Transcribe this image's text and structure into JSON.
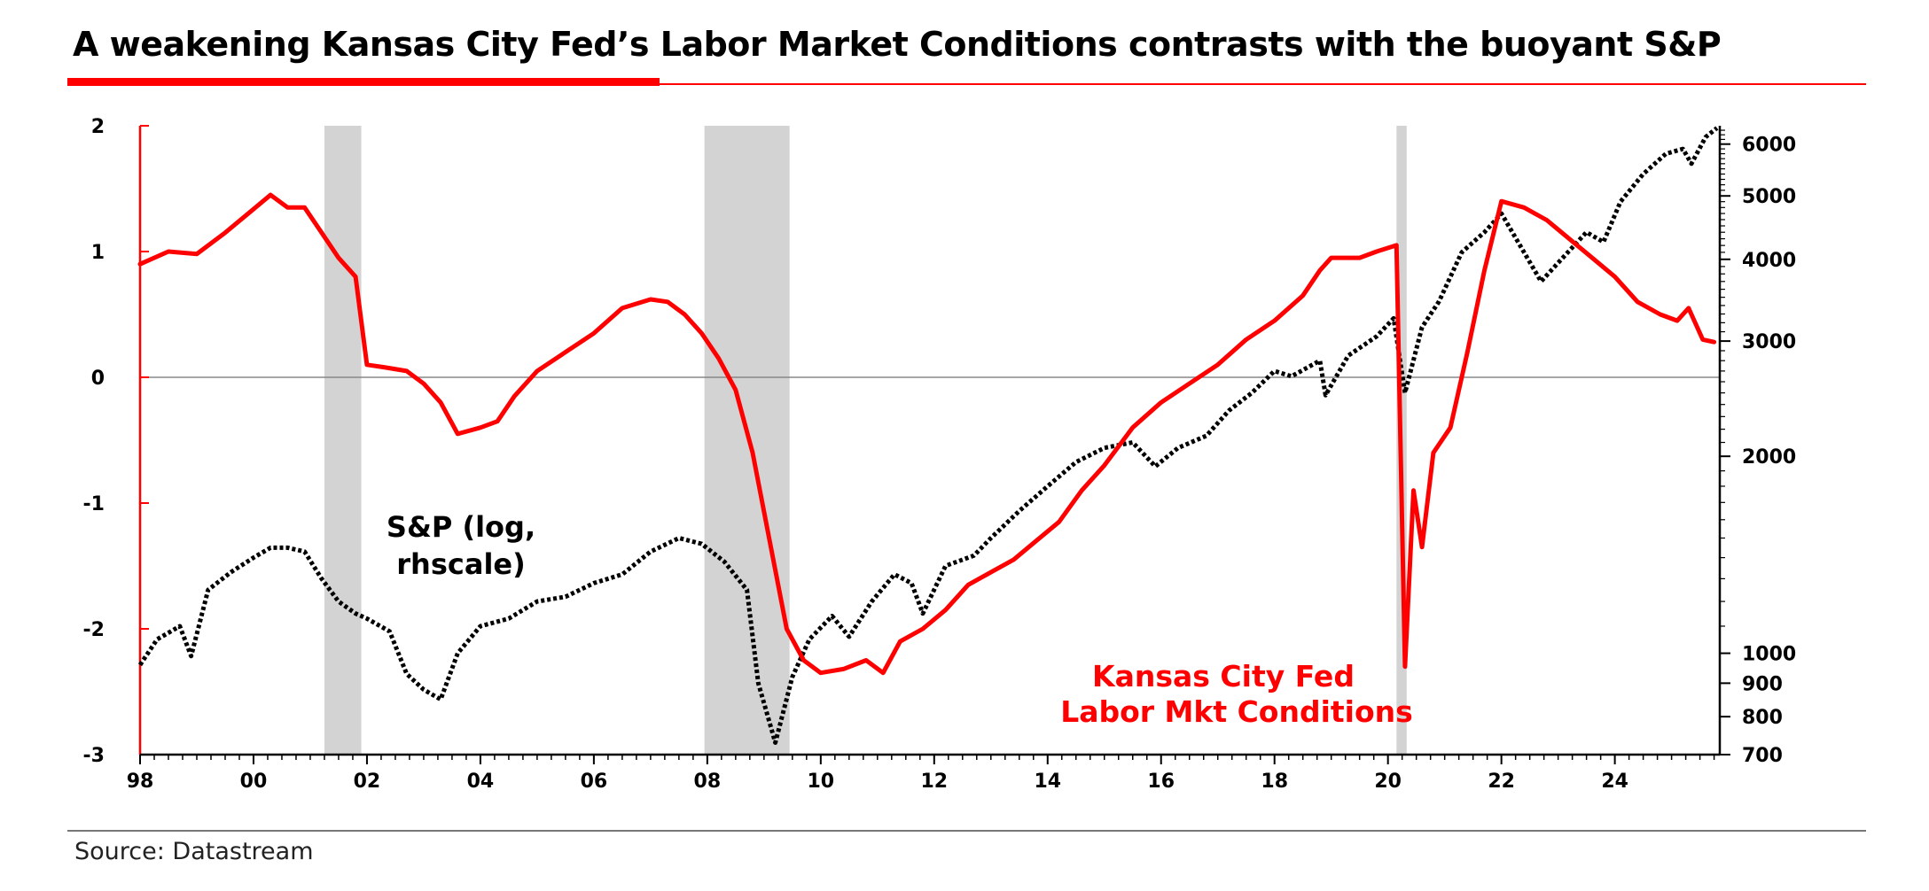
{
  "page": {
    "title": "A weakening Kansas City Fed’s Labor Market Conditions contrasts with the buoyant S&P",
    "source": "Source: Datastream",
    "accent_color": "#ff0000"
  },
  "chart_data": {
    "type": "line",
    "title": "A weakening Kansas City Fed’s Labor Market Conditions contrasts with the buoyant S&P",
    "x_ticks": [
      "98",
      "00",
      "02",
      "04",
      "06",
      "08",
      "10",
      "12",
      "14",
      "16",
      "18",
      "20",
      "22",
      "24"
    ],
    "x_tick_years": [
      1998,
      2000,
      2002,
      2004,
      2006,
      2008,
      2010,
      2012,
      2014,
      2016,
      2018,
      2020,
      2022,
      2024
    ],
    "xlim": [
      1998,
      2025.85
    ],
    "y_left": {
      "ticks": [
        "2",
        "1",
        "0",
        "-1",
        "-2",
        "-3"
      ],
      "values": [
        2,
        1,
        0,
        -1,
        -2,
        -3
      ],
      "ylim": [
        -3,
        2
      ]
    },
    "y_right": {
      "scale": "log",
      "ticks": [
        "6000",
        "5000",
        "4000",
        "3000",
        "2000",
        "1000",
        "900",
        "800",
        "700"
      ],
      "values": [
        6000,
        5000,
        4000,
        3000,
        2000,
        1000,
        900,
        800,
        700
      ],
      "ylim": [
        700,
        6400
      ]
    },
    "recessions": [
      {
        "start": 2001.25,
        "end": 2001.9
      },
      {
        "start": 2007.95,
        "end": 2009.45
      },
      {
        "start": 2020.15,
        "end": 2020.33
      }
    ],
    "annotations": {
      "sp_label_line1": "S&P (log,",
      "sp_label_line2": "rhscale)",
      "kc_label_line1": "Kansas City Fed",
      "kc_label_line2": "Labor Mkt Conditions"
    },
    "series": [
      {
        "name": "Kansas City Fed Labor Mkt Conditions",
        "axis": "left",
        "color": "#ff0000",
        "points": [
          [
            1998.0,
            0.9
          ],
          [
            1998.5,
            1.0
          ],
          [
            1999.0,
            0.98
          ],
          [
            1999.5,
            1.15
          ],
          [
            1999.9,
            1.3
          ],
          [
            2000.3,
            1.45
          ],
          [
            2000.6,
            1.35
          ],
          [
            2000.9,
            1.35
          ],
          [
            2001.2,
            1.15
          ],
          [
            2001.5,
            0.95
          ],
          [
            2001.8,
            0.8
          ],
          [
            2002.0,
            0.1
          ],
          [
            2002.3,
            0.08
          ],
          [
            2002.7,
            0.05
          ],
          [
            2003.0,
            -0.05
          ],
          [
            2003.3,
            -0.2
          ],
          [
            2003.6,
            -0.45
          ],
          [
            2004.0,
            -0.4
          ],
          [
            2004.3,
            -0.35
          ],
          [
            2004.6,
            -0.15
          ],
          [
            2005.0,
            0.05
          ],
          [
            2005.5,
            0.2
          ],
          [
            2006.0,
            0.35
          ],
          [
            2006.5,
            0.55
          ],
          [
            2007.0,
            0.62
          ],
          [
            2007.3,
            0.6
          ],
          [
            2007.6,
            0.5
          ],
          [
            2007.9,
            0.35
          ],
          [
            2008.2,
            0.15
          ],
          [
            2008.5,
            -0.1
          ],
          [
            2008.8,
            -0.6
          ],
          [
            2009.1,
            -1.3
          ],
          [
            2009.4,
            -2.0
          ],
          [
            2009.7,
            -2.25
          ],
          [
            2010.0,
            -2.35
          ],
          [
            2010.4,
            -2.32
          ],
          [
            2010.8,
            -2.25
          ],
          [
            2011.1,
            -2.35
          ],
          [
            2011.4,
            -2.1
          ],
          [
            2011.8,
            -2.0
          ],
          [
            2012.2,
            -1.85
          ],
          [
            2012.6,
            -1.65
          ],
          [
            2013.0,
            -1.55
          ],
          [
            2013.4,
            -1.45
          ],
          [
            2013.8,
            -1.3
          ],
          [
            2014.2,
            -1.15
          ],
          [
            2014.6,
            -0.9
          ],
          [
            2015.0,
            -0.7
          ],
          [
            2015.5,
            -0.4
          ],
          [
            2016.0,
            -0.2
          ],
          [
            2016.5,
            -0.05
          ],
          [
            2017.0,
            0.1
          ],
          [
            2017.5,
            0.3
          ],
          [
            2018.0,
            0.45
          ],
          [
            2018.5,
            0.65
          ],
          [
            2018.8,
            0.85
          ],
          [
            2019.0,
            0.95
          ],
          [
            2019.5,
            0.95
          ],
          [
            2019.8,
            1.0
          ],
          [
            2020.15,
            1.05
          ],
          [
            2020.3,
            -2.3
          ],
          [
            2020.45,
            -0.9
          ],
          [
            2020.6,
            -1.35
          ],
          [
            2020.8,
            -0.6
          ],
          [
            2021.1,
            -0.4
          ],
          [
            2021.4,
            0.2
          ],
          [
            2021.7,
            0.85
          ],
          [
            2022.0,
            1.4
          ],
          [
            2022.4,
            1.35
          ],
          [
            2022.8,
            1.25
          ],
          [
            2023.2,
            1.1
          ],
          [
            2023.6,
            0.95
          ],
          [
            2024.0,
            0.8
          ],
          [
            2024.4,
            0.6
          ],
          [
            2024.8,
            0.5
          ],
          [
            2025.1,
            0.45
          ],
          [
            2025.3,
            0.55
          ],
          [
            2025.55,
            0.3
          ],
          [
            2025.75,
            0.28
          ]
        ]
      },
      {
        "name": "S&P (log, rhscale)",
        "axis": "right",
        "color": "#000000",
        "style": "dotted",
        "points": [
          [
            1998.0,
            960
          ],
          [
            1998.3,
            1050
          ],
          [
            1998.7,
            1100
          ],
          [
            1998.9,
            990
          ],
          [
            1999.2,
            1250
          ],
          [
            1999.6,
            1330
          ],
          [
            2000.0,
            1400
          ],
          [
            2000.3,
            1450
          ],
          [
            2000.6,
            1450
          ],
          [
            2000.9,
            1430
          ],
          [
            2001.2,
            1300
          ],
          [
            2001.5,
            1200
          ],
          [
            2001.8,
            1150
          ],
          [
            2002.0,
            1130
          ],
          [
            2002.4,
            1080
          ],
          [
            2002.7,
            930
          ],
          [
            2003.0,
            880
          ],
          [
            2003.3,
            850
          ],
          [
            2003.6,
            1000
          ],
          [
            2004.0,
            1100
          ],
          [
            2004.5,
            1130
          ],
          [
            2005.0,
            1200
          ],
          [
            2005.5,
            1220
          ],
          [
            2006.0,
            1280
          ],
          [
            2006.5,
            1320
          ],
          [
            2007.0,
            1430
          ],
          [
            2007.5,
            1500
          ],
          [
            2007.9,
            1470
          ],
          [
            2008.3,
            1380
          ],
          [
            2008.7,
            1250
          ],
          [
            2008.9,
            900
          ],
          [
            2009.2,
            730
          ],
          [
            2009.5,
            920
          ],
          [
            2009.8,
            1050
          ],
          [
            2010.2,
            1140
          ],
          [
            2010.5,
            1060
          ],
          [
            2010.9,
            1200
          ],
          [
            2011.3,
            1320
          ],
          [
            2011.6,
            1280
          ],
          [
            2011.8,
            1150
          ],
          [
            2012.2,
            1360
          ],
          [
            2012.7,
            1410
          ],
          [
            2013.0,
            1500
          ],
          [
            2013.5,
            1650
          ],
          [
            2014.0,
            1800
          ],
          [
            2014.5,
            1960
          ],
          [
            2015.0,
            2060
          ],
          [
            2015.5,
            2100
          ],
          [
            2015.9,
            1930
          ],
          [
            2016.3,
            2060
          ],
          [
            2016.8,
            2150
          ],
          [
            2017.2,
            2350
          ],
          [
            2017.6,
            2500
          ],
          [
            2018.0,
            2700
          ],
          [
            2018.3,
            2650
          ],
          [
            2018.8,
            2800
          ],
          [
            2018.9,
            2480
          ],
          [
            2019.3,
            2850
          ],
          [
            2019.8,
            3050
          ],
          [
            2020.1,
            3250
          ],
          [
            2020.3,
            2500
          ],
          [
            2020.6,
            3150
          ],
          [
            2020.9,
            3450
          ],
          [
            2021.3,
            4100
          ],
          [
            2021.7,
            4400
          ],
          [
            2022.0,
            4700
          ],
          [
            2022.4,
            4100
          ],
          [
            2022.7,
            3700
          ],
          [
            2023.0,
            3950
          ],
          [
            2023.5,
            4400
          ],
          [
            2023.8,
            4250
          ],
          [
            2024.1,
            4900
          ],
          [
            2024.5,
            5400
          ],
          [
            2024.9,
            5800
          ],
          [
            2025.2,
            5900
          ],
          [
            2025.35,
            5600
          ],
          [
            2025.6,
            6150
          ],
          [
            2025.8,
            6350
          ]
        ]
      }
    ]
  }
}
